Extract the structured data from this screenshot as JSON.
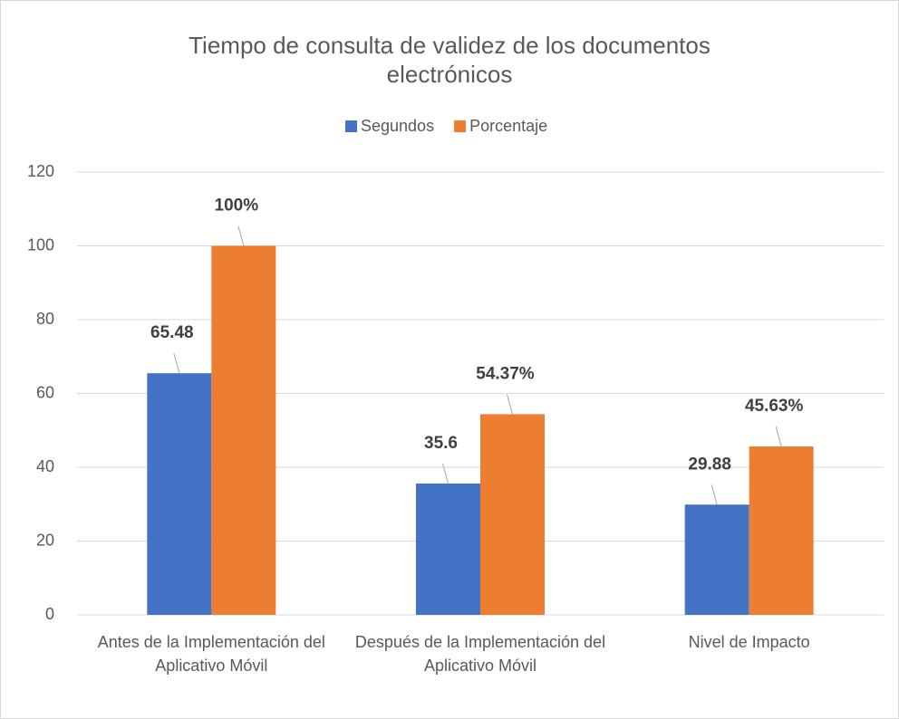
{
  "chart_data": {
    "type": "bar",
    "title": "Tiempo de consulta de validez de los documentos electrónicos",
    "categories": [
      "Antes de la Implementación del Aplicativo Móvil",
      "Después de la Implementación del Aplicativo Móvil",
      "Nivel de Impacto"
    ],
    "series": [
      {
        "name": "Segundos",
        "color": "#4472c4",
        "values": [
          65.48,
          35.6,
          29.88
        ]
      },
      {
        "name": "Porcentaje",
        "color": "#ed7d31",
        "values": [
          100,
          54.37,
          45.63
        ],
        "value_labels": [
          "100%",
          "54.37%",
          "45.63%"
        ]
      }
    ],
    "ylim": [
      0,
      120
    ],
    "yticks": [
      0,
      20,
      40,
      60,
      80,
      100,
      120
    ],
    "grid": true,
    "legend": "top"
  }
}
